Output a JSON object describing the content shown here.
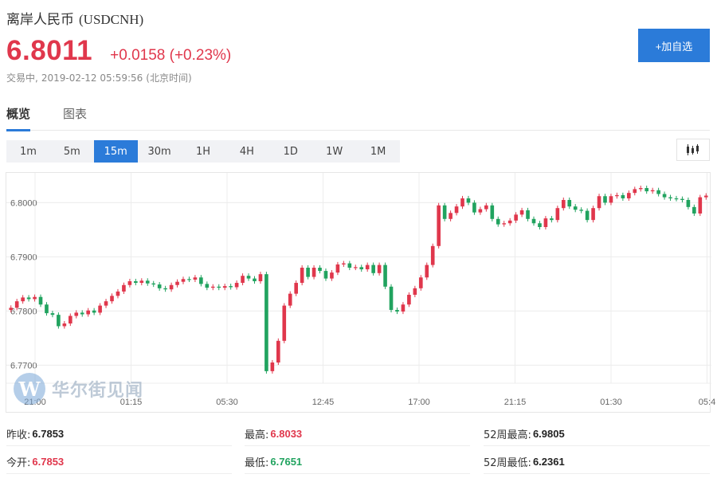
{
  "header": {
    "name": "离岸人民币",
    "code": "(USDCNH)",
    "price": "6.8011",
    "change": "+0.0158 (+0.23%)",
    "status": "交易中,",
    "timestamp": "2019-02-12 05:59:56",
    "timezone": "(北京时间)",
    "watch_button": "+加自选"
  },
  "tabs": [
    {
      "label": "概览",
      "active": true
    },
    {
      "label": "图表",
      "active": false
    }
  ],
  "intervals": [
    "1m",
    "5m",
    "15m",
    "30m",
    "1H",
    "4H",
    "1D",
    "1W",
    "1M"
  ],
  "active_interval": "15m",
  "chart_type_icon": "candlestick-icon",
  "watermark": "华尔街见闻",
  "colors": {
    "up": "#e0374c",
    "down": "#21a35f",
    "accent": "#2b7bd9"
  },
  "chart_data": {
    "type": "candlestick",
    "y_ticks": [
      "6.8000",
      "6.7900",
      "6.7800",
      "6.7700"
    ],
    "y_tick_values": [
      6.8,
      6.79,
      6.78,
      6.77
    ],
    "ylim": [
      6.7655,
      6.8055
    ],
    "x_ticks": [
      "21:00",
      "01:15",
      "05:30",
      "12:45",
      "17:00",
      "21:15",
      "01:30",
      "05:4"
    ],
    "grid": true,
    "closes": [
      6.7806,
      6.7818,
      6.7825,
      6.7822,
      6.7826,
      6.7812,
      6.7796,
      6.7793,
      6.7772,
      6.7777,
      6.7791,
      6.7797,
      6.7794,
      6.7801,
      6.7797,
      6.781,
      6.7818,
      6.7828,
      6.7836,
      6.7848,
      6.7855,
      6.7852,
      6.7856,
      6.7851,
      6.7849,
      6.7842,
      6.784,
      6.7848,
      6.7854,
      6.7859,
      6.7858,
      6.7862,
      6.785,
      6.7843,
      6.7845,
      6.7843,
      6.7846,
      6.7844,
      6.7852,
      6.7865,
      6.786,
      6.7855,
      6.7868,
      6.7689,
      6.7705,
      6.7745,
      6.781,
      6.7832,
      6.7852,
      6.788,
      6.7863,
      6.788,
      6.7874,
      6.786,
      6.7871,
      6.7886,
      6.7888,
      6.788,
      6.7881,
      6.7877,
      6.7885,
      6.787,
      6.7885,
      6.7845,
      6.7802,
      6.7799,
      6.7812,
      6.783,
      6.7842,
      6.7862,
      6.7885,
      6.792,
      6.7995,
      6.797,
      6.7981,
      6.7993,
      6.8008,
      6.8,
      6.7982,
      6.7988,
      6.7995,
      6.797,
      6.796,
      6.7962,
      6.7967,
      6.7978,
      6.7986,
      6.797,
      6.7962,
      6.7955,
      6.7971,
      6.7968,
      6.799,
      6.8005,
      6.7993,
      6.7987,
      6.7985,
      6.7968,
      6.799,
      6.8012,
      6.8,
      6.8012,
      6.8014,
      6.8008,
      6.8018,
      6.8025,
      6.8027,
      6.8021,
      6.8023,
      6.8016,
      6.801,
      6.8008,
      6.8007,
      6.8005,
      6.7992,
      6.798,
      6.801,
      6.8013
    ]
  },
  "stats": [
    {
      "label": "昨收:",
      "value": "6.7853",
      "tone": "dark"
    },
    {
      "label": "最高:",
      "value": "6.8033",
      "tone": "red"
    },
    {
      "label": "52周最高:",
      "value": "6.9805",
      "tone": "dark"
    },
    {
      "label": "今开:",
      "value": "6.7853",
      "tone": "red"
    },
    {
      "label": "最低:",
      "value": "6.7651",
      "tone": "green"
    },
    {
      "label": "52周最低:",
      "value": "6.2361",
      "tone": "dark"
    }
  ]
}
